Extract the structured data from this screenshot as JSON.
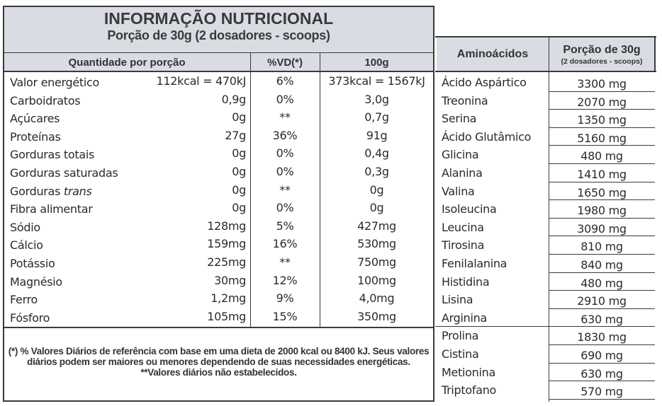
{
  "nutrition": {
    "title": "INFORMAÇÃO NUTRICIONAL",
    "subtitle": "Porção de 30g (2 dosadores - scoops)",
    "headers": {
      "quantity": "Quantidade por porção",
      "vd": "%VD(*)",
      "per100": "100g"
    },
    "rows": [
      {
        "name": "Valor energético",
        "qty": "112kcal = 470kJ",
        "vd": "6%",
        "per100": "373kcal = 1567kJ"
      },
      {
        "name": "Carboidratos",
        "qty": "0,9g",
        "vd": "0%",
        "per100": "3,0g"
      },
      {
        "name": "Açúcares",
        "qty": "0g",
        "vd": "**",
        "per100": "0,7g"
      },
      {
        "name": "Proteínas",
        "qty": "27g",
        "vd": "36%",
        "per100": "91g"
      },
      {
        "name": "Gorduras totais",
        "qty": "0g",
        "vd": "0%",
        "per100": "0,4g"
      },
      {
        "name": "Gorduras saturadas",
        "qty": "0g",
        "vd": "0%",
        "per100": "0,3g"
      },
      {
        "name": "Gorduras",
        "name_italic": "trans",
        "qty": "0g",
        "vd": "**",
        "per100": "0g"
      },
      {
        "name": "Fibra alimentar",
        "qty": "0g",
        "vd": "0%",
        "per100": "0g"
      },
      {
        "name": "Sódio",
        "qty": "128mg",
        "vd": "5%",
        "per100": "427mg"
      },
      {
        "name": "Cálcio",
        "qty": "159mg",
        "vd": "16%",
        "per100": "530mg"
      },
      {
        "name": "Potássio",
        "qty": "225mg",
        "vd": "**",
        "per100": "750mg"
      },
      {
        "name": "Magnésio",
        "qty": "30mg",
        "vd": "12%",
        "per100": "100mg"
      },
      {
        "name": "Ferro",
        "qty": "1,2mg",
        "vd": "9%",
        "per100": "4,0mg"
      },
      {
        "name": "Fósforo",
        "qty": "105mg",
        "vd": "15%",
        "per100": "350mg"
      }
    ],
    "footnote_line1": "(*) % Valores Diários de referência com base em uma dieta de 2000 kcal ou 8400 kJ. Seus valores",
    "footnote_line2": "diários podem ser maiores ou menores dependendo de suas necessidades energéticas.",
    "footnote_line3": "**Valores diários não estabelecidos."
  },
  "amino": {
    "header_name": "Aminoácidos",
    "header_portion": "Porção de 30g",
    "header_portion_sub": "(2 dosadores - scoops)",
    "rows": [
      {
        "name": "Ácido Aspártico",
        "value": "3300 mg"
      },
      {
        "name": "Treonina",
        "value": "2070 mg"
      },
      {
        "name": "Serina",
        "value": "1350 mg"
      },
      {
        "name": "Ácido Glutâmico",
        "value": "5160 mg"
      },
      {
        "name": "Glicina",
        "value": "480 mg"
      },
      {
        "name": "Alanina",
        "value": "1410 mg"
      },
      {
        "name": "Valina",
        "value": "1650 mg"
      },
      {
        "name": "Isoleucina",
        "value": "1980 mg"
      },
      {
        "name": "Leucina",
        "value": "3090 mg"
      },
      {
        "name": "Tirosina",
        "value": "810 mg"
      },
      {
        "name": "Fenilalanina",
        "value": "840 mg"
      },
      {
        "name": "Histidina",
        "value": "480 mg"
      },
      {
        "name": "Lisina",
        "value": "2910 mg"
      },
      {
        "name": "Arginina",
        "value": "630 mg"
      },
      {
        "name": "Prolina",
        "value": "1830 mg"
      },
      {
        "name": "Cistina",
        "value": "690 mg"
      },
      {
        "name": "Metionina",
        "value": "630 mg"
      },
      {
        "name": "Triptofano",
        "value": "570 mg"
      }
    ]
  }
}
